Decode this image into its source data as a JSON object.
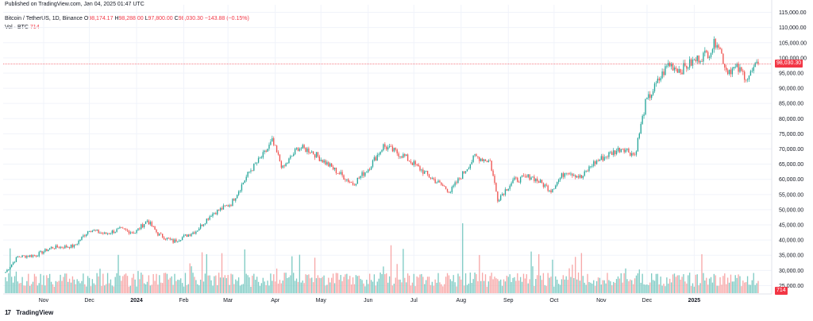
{
  "header": {
    "published": "Published on TradingView.com, Jan 04, 2025 01:47 UTC"
  },
  "legend": {
    "symbol": "Bitcoin / TetherUS, 1D, Binance",
    "o_label": "O",
    "o_value": "98,174.17",
    "h_label": "H",
    "h_value": "98,288.00",
    "l_label": "L",
    "l_value": "97,800.00",
    "c_label": "C",
    "c_value": "98,030.30",
    "change": "−143.88 (−0.15%)",
    "vol_label": "Vol · BTC",
    "vol_value": "714"
  },
  "price_tag": "98,030.30",
  "volume_tag": "714",
  "footer": {
    "brand": "TradingView"
  },
  "colors": {
    "up": "#26a69a",
    "down": "#ef5350",
    "up_vol": "#7fcbc4",
    "down_vol": "#f7a8a8",
    "grid": "#f0f3fa",
    "price_line": "#f23645"
  },
  "chart_data": {
    "type": "candlestick",
    "y_ticks": [
      "115,000.00",
      "110,000.00",
      "105,000.00",
      "100,000.00",
      "95,000.00",
      "90,000.00",
      "85,000.00",
      "80,000.00",
      "75,000.00",
      "70,000.00",
      "65,000.00",
      "60,000.00",
      "55,000.00",
      "50,000.00",
      "45,000.00",
      "40,000.00",
      "35,000.00",
      "30,000.00",
      "25,000.00"
    ],
    "ylim": [
      22500,
      117500
    ],
    "x_labels": [
      "Nov",
      "Dec",
      "2024",
      "Feb",
      "Mar",
      "Apr",
      "May",
      "Jun",
      "Jul",
      "Aug",
      "Sep",
      "Oct",
      "Nov",
      "Dec",
      "2025"
    ],
    "anchors": [
      {
        "d": 0,
        "p": 29500
      },
      {
        "d": 8,
        "p": 34500
      },
      {
        "d": 20,
        "p": 35000
      },
      {
        "d": 30,
        "p": 37500
      },
      {
        "d": 45,
        "p": 38000
      },
      {
        "d": 55,
        "p": 43500
      },
      {
        "d": 65,
        "p": 42000
      },
      {
        "d": 75,
        "p": 43500
      },
      {
        "d": 85,
        "p": 42500
      },
      {
        "d": 93,
        "p": 46500
      },
      {
        "d": 100,
        "p": 42000
      },
      {
        "d": 110,
        "p": 39500
      },
      {
        "d": 125,
        "p": 43000
      },
      {
        "d": 135,
        "p": 48500
      },
      {
        "d": 148,
        "p": 52000
      },
      {
        "d": 160,
        "p": 62500
      },
      {
        "d": 170,
        "p": 68500
      },
      {
        "d": 175,
        "p": 72500
      },
      {
        "d": 182,
        "p": 63500
      },
      {
        "d": 192,
        "p": 70500
      },
      {
        "d": 200,
        "p": 69500
      },
      {
        "d": 215,
        "p": 63500
      },
      {
        "d": 228,
        "p": 58500
      },
      {
        "d": 238,
        "p": 63500
      },
      {
        "d": 248,
        "p": 71000
      },
      {
        "d": 262,
        "p": 67500
      },
      {
        "d": 278,
        "p": 61000
      },
      {
        "d": 292,
        "p": 56000
      },
      {
        "d": 308,
        "p": 67500
      },
      {
        "d": 318,
        "p": 66000
      },
      {
        "d": 323,
        "p": 53500
      },
      {
        "d": 333,
        "p": 59500
      },
      {
        "d": 345,
        "p": 61000
      },
      {
        "d": 358,
        "p": 56500
      },
      {
        "d": 368,
        "p": 63000
      },
      {
        "d": 378,
        "p": 60500
      },
      {
        "d": 385,
        "p": 65000
      },
      {
        "d": 395,
        "p": 68000
      },
      {
        "d": 405,
        "p": 70500
      },
      {
        "d": 413,
        "p": 68000
      },
      {
        "d": 420,
        "p": 85000
      },
      {
        "d": 428,
        "p": 92000
      },
      {
        "d": 435,
        "p": 98000
      },
      {
        "d": 443,
        "p": 96000
      },
      {
        "d": 452,
        "p": 99000
      },
      {
        "d": 462,
        "p": 102000
      },
      {
        "d": 467,
        "p": 106000
      },
      {
        "d": 473,
        "p": 96000
      },
      {
        "d": 480,
        "p": 96500
      },
      {
        "d": 487,
        "p": 93500
      },
      {
        "d": 494,
        "p": 98030
      }
    ],
    "volume_scale_max": 45000,
    "current_price": 98030.3
  }
}
